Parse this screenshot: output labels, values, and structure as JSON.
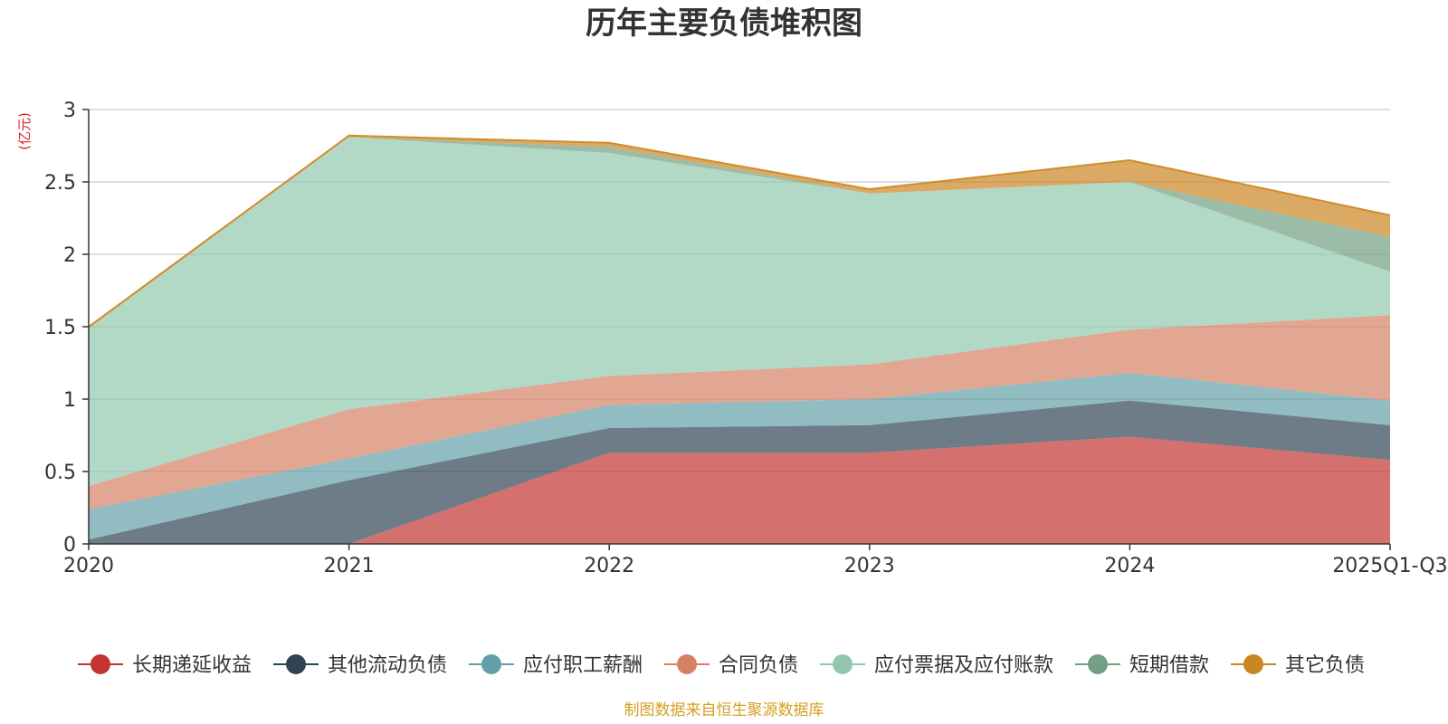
{
  "chart_data": {
    "type": "area",
    "stacked": true,
    "title": "历年主要负债堆积图",
    "unit": "(亿元)",
    "source": "制图数据来自恒生聚源数据库",
    "categories": [
      "2020",
      "2021",
      "2022",
      "2023",
      "2024",
      "2025Q1-Q3"
    ],
    "ylim": [
      0,
      3
    ],
    "yticks": [
      0,
      0.5,
      1,
      1.5,
      2,
      2.5,
      3
    ],
    "ytick_labels": [
      "0",
      "0.5",
      "1",
      "1.5",
      "2",
      "2.5",
      "3"
    ],
    "grid": true,
    "legend_position": "bottom",
    "series": [
      {
        "name": "长期递延收益",
        "color": "#c23531",
        "values": [
          0.0,
          0.0,
          0.63,
          0.63,
          0.74,
          0.58
        ]
      },
      {
        "name": "其他流动负债",
        "color": "#2f4554",
        "values": [
          0.03,
          0.44,
          0.17,
          0.19,
          0.25,
          0.24
        ]
      },
      {
        "name": "应付职工薪酬",
        "color": "#61a0a8",
        "values": [
          0.21,
          0.15,
          0.16,
          0.18,
          0.19,
          0.17
        ]
      },
      {
        "name": "合同负债",
        "color": "#d48265",
        "values": [
          0.16,
          0.34,
          0.2,
          0.24,
          0.3,
          0.59
        ]
      },
      {
        "name": "应付票据及应付账款",
        "color": "#91c7ae",
        "values": [
          1.09,
          1.88,
          1.54,
          1.18,
          1.02,
          0.3
        ]
      },
      {
        "name": "短期借款",
        "color": "#749f83",
        "values": [
          0.0,
          0.0,
          0.04,
          0.0,
          0.0,
          0.24
        ]
      },
      {
        "name": "其它负债",
        "color": "#ca8622",
        "values": [
          0.01,
          0.01,
          0.03,
          0.03,
          0.15,
          0.15
        ]
      }
    ]
  }
}
